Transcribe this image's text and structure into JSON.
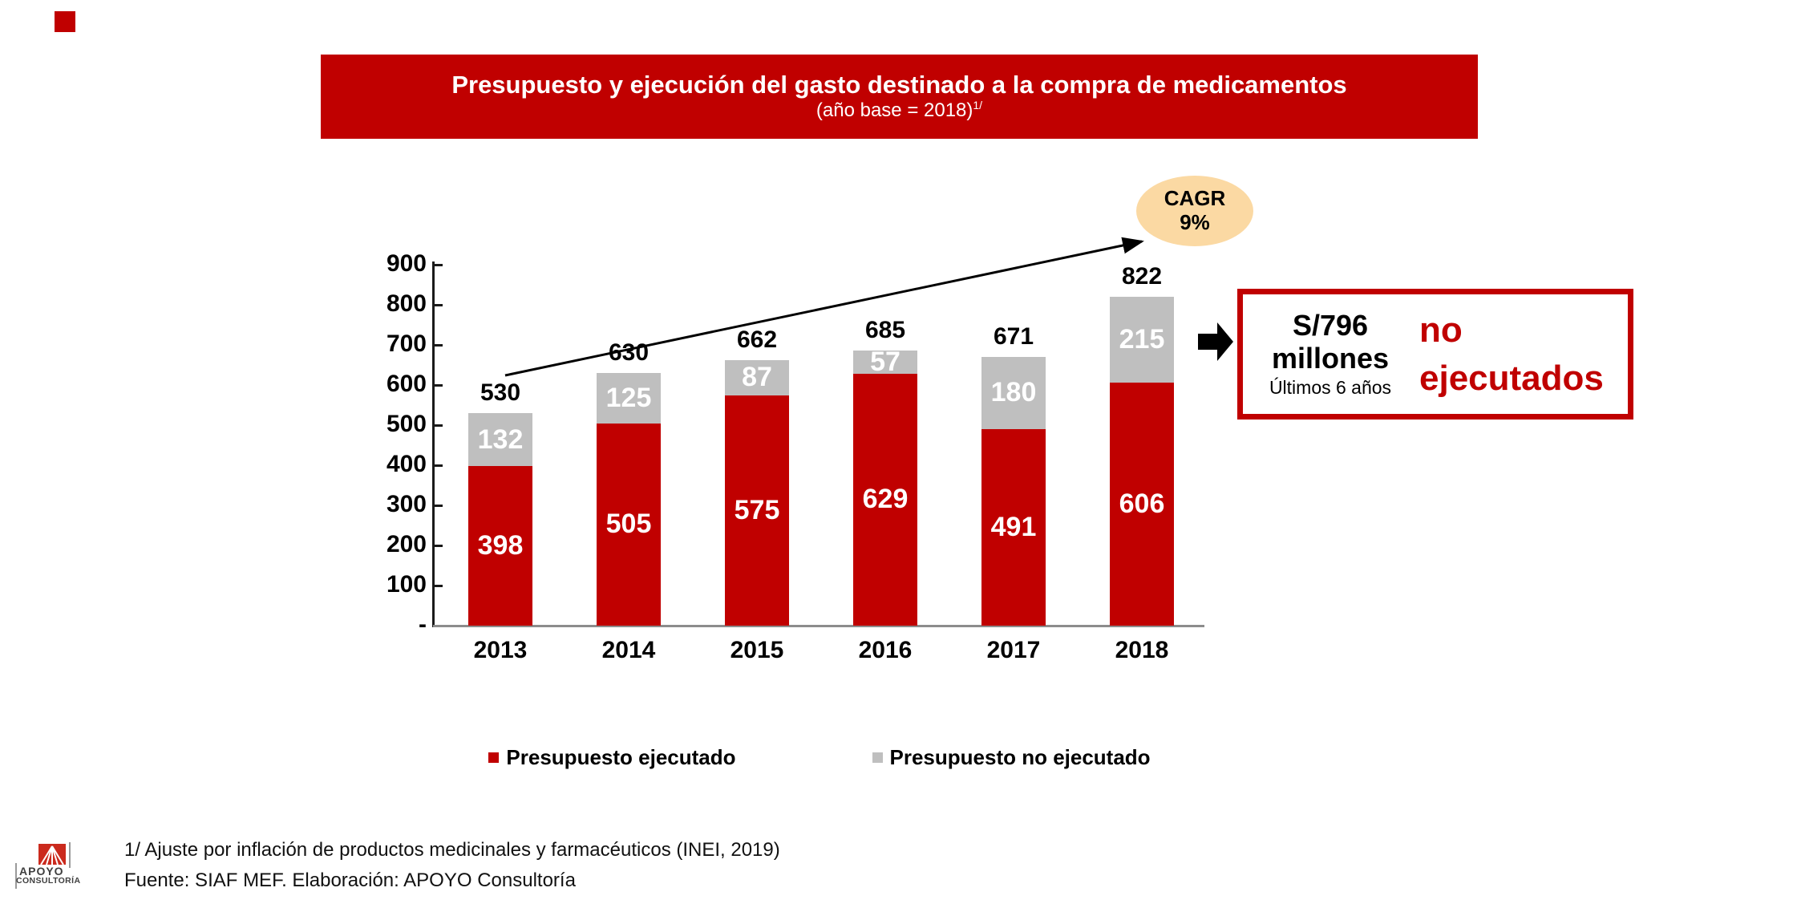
{
  "slide": {
    "corner_color": "#C00000"
  },
  "banner": {
    "bg": "#C00000",
    "title": "Presupuesto y ejecución del gasto destinado a la compra de medicamentos",
    "subtitle": "(año base = 2018)",
    "subtitle_sup": "1/"
  },
  "chart_data": {
    "type": "bar",
    "stacked": true,
    "categories": [
      "2013",
      "2014",
      "2015",
      "2016",
      "2017",
      "2018"
    ],
    "series": [
      {
        "name": "Presupuesto ejecutado",
        "color": "#C00000",
        "values": [
          398,
          505,
          575,
          629,
          491,
          606
        ]
      },
      {
        "name": "Presupuesto no ejecutado",
        "color": "#BFBFBF",
        "values": [
          132,
          125,
          87,
          57,
          180,
          215
        ]
      }
    ],
    "totals": [
      530,
      630,
      662,
      685,
      671,
      822
    ],
    "ylim": [
      0,
      900
    ],
    "yticks": [
      {
        "value": 900,
        "label": "900"
      },
      {
        "value": 800,
        "label": "800"
      },
      {
        "value": 700,
        "label": "700"
      },
      {
        "value": 600,
        "label": "600"
      },
      {
        "value": 500,
        "label": "500"
      },
      {
        "value": 400,
        "label": "400"
      },
      {
        "value": 300,
        "label": "300"
      },
      {
        "value": 200,
        "label": "200"
      },
      {
        "value": 100,
        "label": "100"
      },
      {
        "value": 0,
        "label": "-"
      }
    ],
    "grid": false,
    "legend_position": "bottom",
    "value_label_color": "#FFFFFF",
    "total_label_color": "#000000"
  },
  "annotations": {
    "cagr": {
      "line1": "CAGR",
      "line2": "9%",
      "fill": "#FBD9A3"
    },
    "highlight_box": {
      "amount": "S/796",
      "unit": "millones",
      "period": "Últimos 6 años",
      "message": "no ejecutados",
      "border": "#C00000",
      "message_color": "#C00000"
    }
  },
  "footer": {
    "footnote": "1/ Ajuste por inflación de productos medicinales y farmacéuticos (INEI, 2019)",
    "source": "Fuente: SIAF MEF. Elaboración: APOYO Consultoría",
    "logo": {
      "line1": "APOYO",
      "line2": "CONSULTORÍA",
      "mark_color": "#CB2A1D"
    }
  }
}
